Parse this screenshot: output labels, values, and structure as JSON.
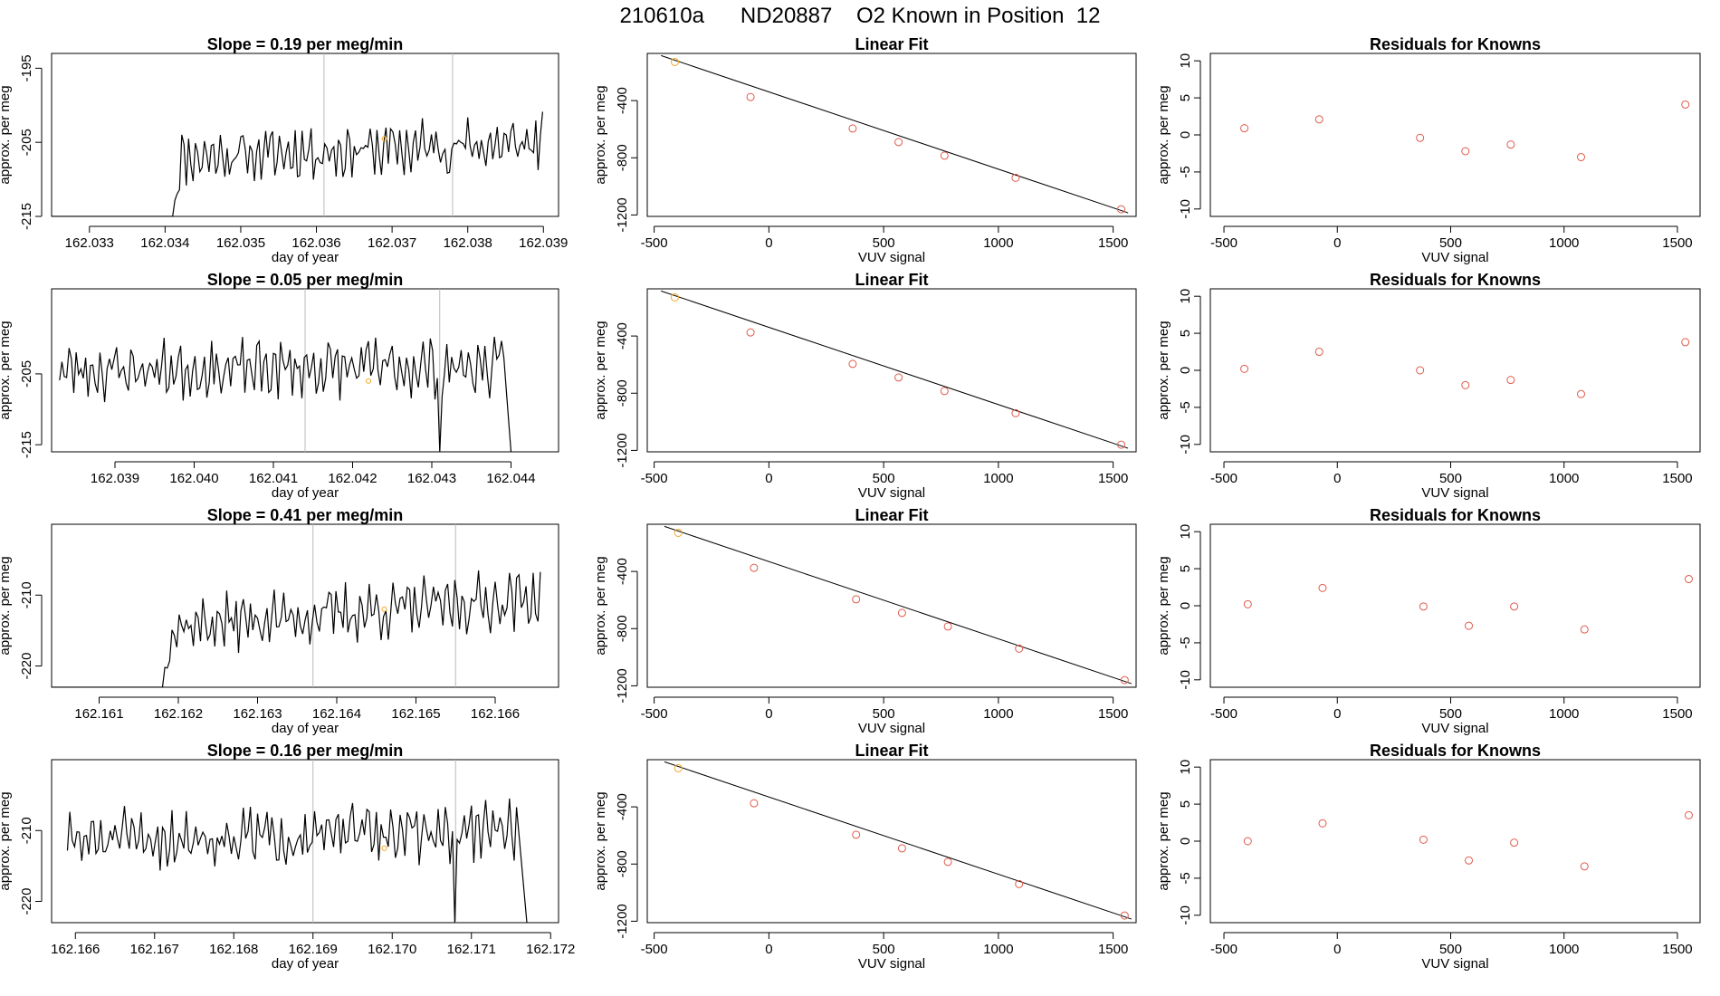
{
  "page_title": "210610a      ND20887    O2 Known in Position  12",
  "colors": {
    "trace": "#000000",
    "fit_line": "#000000",
    "known_point": "#e05a4a",
    "current_point": "#f5a623",
    "vline": "#bbbbbb"
  },
  "chart_data": [
    {
      "type": "line",
      "row": 0,
      "title": "Slope =  0.19  per meg/min",
      "xlabel": "day of year",
      "ylabel": "approx. per meg",
      "xlim": [
        162.0325,
        162.0392
      ],
      "ylim": [
        -215,
        -193
      ],
      "xticks": [
        162.033,
        162.034,
        162.035,
        162.036,
        162.037,
        162.038,
        162.039
      ],
      "xtick_labels": [
        "162.033",
        "162.034",
        "162.035",
        "162.036",
        "162.037",
        "162.038",
        "162.039"
      ],
      "yticks": [
        -215,
        -205,
        -195
      ],
      "ytick_labels": [
        "-215",
        "-205",
        "-195"
      ],
      "vlines": [
        162.0361,
        162.0378
      ],
      "highlight": {
        "x": 162.0369,
        "y": -204.5
      },
      "trace": {
        "start": 162.0341,
        "end": 162.039,
        "step": 3e-05,
        "base": -207,
        "trend": 0.19,
        "amp": 3.2,
        "seed": 11,
        "pre_x0": 162.0325,
        "pre_y": -215,
        "dips": []
      }
    },
    {
      "type": "line",
      "row": 1,
      "title": "Slope =  0.05  per meg/min",
      "xlabel": "day of year",
      "ylabel": "approx. per meg",
      "xlim": [
        162.0382,
        162.0446
      ],
      "ylim": [
        -216,
        -193
      ],
      "xticks": [
        162.039,
        162.04,
        162.041,
        162.042,
        162.043,
        162.044
      ],
      "xtick_labels": [
        "162.039",
        "162.040",
        "162.041",
        "162.042",
        "162.043",
        "162.044"
      ],
      "yticks": [
        -215,
        -205
      ],
      "ytick_labels": [
        "-215",
        "-205"
      ],
      "vlines": [
        162.0414,
        162.0431
      ],
      "highlight": {
        "x": 162.0422,
        "y": -206
      },
      "trace": {
        "start": 162.0383,
        "end": 162.04395,
        "step": 3e-05,
        "base": -204.5,
        "trend": 0.05,
        "amp": 3.4,
        "seed": 23,
        "dips": [
          {
            "x": 162.0431,
            "y": -216
          }
        ],
        "tail": {
          "x": 162.044,
          "y": -216
        }
      }
    },
    {
      "type": "line",
      "row": 2,
      "title": "Slope =  0.41  per meg/min",
      "xlabel": "day of year",
      "ylabel": "approx. per meg",
      "xlim": [
        162.1604,
        162.1668
      ],
      "ylim": [
        -223,
        -200
      ],
      "xticks": [
        162.161,
        162.162,
        162.163,
        162.164,
        162.165,
        162.166
      ],
      "xtick_labels": [
        "162.161",
        "162.162",
        "162.163",
        "162.164",
        "162.165",
        "162.166"
      ],
      "yticks": [
        -220,
        -210
      ],
      "ytick_labels": [
        "-220",
        "-210"
      ],
      "vlines": [
        162.1637,
        162.1655
      ],
      "highlight": {
        "x": 162.1646,
        "y": -212
      },
      "trace": {
        "start": 162.1618,
        "end": 162.1666,
        "step": 3e-05,
        "base": -214.5,
        "trend": 0.41,
        "amp": 3.4,
        "seed": 37,
        "pre_x0": 162.1604,
        "pre_y": -223,
        "dips": []
      }
    },
    {
      "type": "line",
      "row": 3,
      "title": "Slope =  0.16  per meg/min",
      "xlabel": "day of year",
      "ylabel": "approx. per meg",
      "xlim": [
        162.1657,
        162.1721
      ],
      "ylim": [
        -223,
        -200
      ],
      "xticks": [
        162.166,
        162.167,
        162.168,
        162.169,
        162.17,
        162.171,
        162.172
      ],
      "xtick_labels": [
        "162.166",
        "162.167",
        "162.168",
        "162.169",
        "162.170",
        "162.171",
        "162.172"
      ],
      "yticks": [
        -220,
        -210
      ],
      "ytick_labels": [
        "-220",
        "-210"
      ],
      "vlines": [
        162.169,
        162.1708
      ],
      "highlight": {
        "x": 162.1699,
        "y": -212.5
      },
      "trace": {
        "start": 162.1659,
        "end": 162.1716,
        "step": 3e-05,
        "base": -211.5,
        "trend": 0.16,
        "amp": 3.4,
        "seed": 51,
        "dips": [
          {
            "x": 162.1708,
            "y": -223
          }
        ],
        "tail": {
          "x": 162.1717,
          "y": -223
        }
      }
    },
    {
      "type": "scatter",
      "row": 0,
      "title": "Linear Fit",
      "xlabel": "VUV signal",
      "ylabel": "approx. per meg",
      "xlim": [
        -530,
        1600
      ],
      "ylim": [
        -1210,
        -70
      ],
      "xticks": [
        -500,
        0,
        500,
        1000,
        1500
      ],
      "xtick_labels": [
        "-500",
        "0",
        "500",
        "1000",
        "1500"
      ],
      "yticks": [
        -1200,
        -800,
        -400
      ],
      "ytick_labels": [
        "-1200",
        "-800",
        "-400"
      ],
      "x": [
        -410,
        -80,
        365,
        565,
        765,
        1075,
        1535
      ],
      "y": [
        -130,
        -375,
        -595,
        -690,
        -785,
        -940,
        -1160
      ],
      "highlight_index": 0,
      "fit": {
        "x": [
          -470,
          1565
        ],
        "y": [
          -85,
          -1185
        ]
      }
    },
    {
      "type": "scatter",
      "row": 1,
      "title": "Linear Fit",
      "xlabel": "VUV signal",
      "ylabel": "approx. per meg",
      "xlim": [
        -530,
        1600
      ],
      "ylim": [
        -1210,
        -70
      ],
      "xticks": [
        -500,
        0,
        500,
        1000,
        1500
      ],
      "xtick_labels": [
        "-500",
        "0",
        "500",
        "1000",
        "1500"
      ],
      "yticks": [
        -1200,
        -800,
        -400
      ],
      "ytick_labels": [
        "-1200",
        "-800",
        "-400"
      ],
      "x": [
        -410,
        -80,
        365,
        565,
        765,
        1075,
        1535
      ],
      "y": [
        -130,
        -375,
        -595,
        -690,
        -785,
        -940,
        -1160
      ],
      "highlight_index": 0,
      "fit": {
        "x": [
          -470,
          1565
        ],
        "y": [
          -85,
          -1185
        ]
      }
    },
    {
      "type": "scatter",
      "row": 2,
      "title": "Linear Fit",
      "xlabel": "VUV signal",
      "ylabel": "approx. per meg",
      "xlim": [
        -530,
        1600
      ],
      "ylim": [
        -1210,
        -70
      ],
      "xticks": [
        -500,
        0,
        500,
        1000,
        1500
      ],
      "xtick_labels": [
        "-500",
        "0",
        "500",
        "1000",
        "1500"
      ],
      "yticks": [
        -1200,
        -800,
        -400
      ],
      "ytick_labels": [
        "-1200",
        "-800",
        "-400"
      ],
      "x": [
        -395,
        -65,
        380,
        580,
        780,
        1090,
        1550
      ],
      "y": [
        -130,
        -375,
        -595,
        -690,
        -785,
        -940,
        -1160
      ],
      "highlight_index": 0,
      "fit": {
        "x": [
          -455,
          1580
        ],
        "y": [
          -85,
          -1185
        ]
      }
    },
    {
      "type": "scatter",
      "row": 3,
      "title": "Linear Fit",
      "xlabel": "VUV signal",
      "ylabel": "approx. per meg",
      "xlim": [
        -530,
        1600
      ],
      "ylim": [
        -1210,
        -70
      ],
      "xticks": [
        -500,
        0,
        500,
        1000,
        1500
      ],
      "xtick_labels": [
        "-500",
        "0",
        "500",
        "1000",
        "1500"
      ],
      "yticks": [
        -1200,
        -800,
        -400
      ],
      "ytick_labels": [
        "-1200",
        "-800",
        "-400"
      ],
      "x": [
        -395,
        -65,
        380,
        580,
        780,
        1090,
        1550
      ],
      "y": [
        -130,
        -375,
        -595,
        -690,
        -785,
        -940,
        -1160
      ],
      "highlight_index": 0,
      "fit": {
        "x": [
          -455,
          1580
        ],
        "y": [
          -85,
          -1185
        ]
      }
    },
    {
      "type": "scatter",
      "row": 0,
      "title": "Residuals for Knowns",
      "xlabel": "VUV signal",
      "ylabel": "approx. per meg",
      "xlim": [
        -560,
        1600
      ],
      "ylim": [
        -11,
        11
      ],
      "xticks": [
        -500,
        0,
        500,
        1000,
        1500
      ],
      "xtick_labels": [
        "-500",
        "0",
        "500",
        "1000",
        "1500"
      ],
      "yticks": [
        -10,
        -5,
        0,
        5,
        10
      ],
      "ytick_labels": [
        "-10",
        "-5",
        "0",
        "5",
        "10"
      ],
      "x": [
        -410,
        -80,
        365,
        565,
        765,
        1075,
        1535
      ],
      "y": [
        0.9,
        2.1,
        -0.4,
        -2.2,
        -1.3,
        -3.0,
        4.1
      ]
    },
    {
      "type": "scatter",
      "row": 1,
      "title": "Residuals for Knowns",
      "xlabel": "VUV signal",
      "ylabel": "approx. per meg",
      "xlim": [
        -560,
        1600
      ],
      "ylim": [
        -11,
        11
      ],
      "xticks": [
        -500,
        0,
        500,
        1000,
        1500
      ],
      "xtick_labels": [
        "-500",
        "0",
        "500",
        "1000",
        "1500"
      ],
      "yticks": [
        -10,
        -5,
        0,
        5,
        10
      ],
      "ytick_labels": [
        "-10",
        "-5",
        "0",
        "5",
        "10"
      ],
      "x": [
        -410,
        -80,
        365,
        565,
        765,
        1075,
        1535
      ],
      "y": [
        0.2,
        2.5,
        0.0,
        -2.0,
        -1.3,
        -3.2,
        3.8
      ]
    },
    {
      "type": "scatter",
      "row": 2,
      "title": "Residuals for Knowns",
      "xlabel": "VUV signal",
      "ylabel": "approx. per meg",
      "xlim": [
        -560,
        1600
      ],
      "ylim": [
        -11,
        11
      ],
      "xticks": [
        -500,
        0,
        500,
        1000,
        1500
      ],
      "xtick_labels": [
        "-500",
        "0",
        "500",
        "1000",
        "1500"
      ],
      "yticks": [
        -10,
        -5,
        0,
        5,
        10
      ],
      "ytick_labels": [
        "-10",
        "-5",
        "0",
        "5",
        "10"
      ],
      "x": [
        -395,
        -65,
        380,
        580,
        780,
        1090,
        1550
      ],
      "y": [
        0.2,
        2.4,
        -0.1,
        -2.7,
        -0.1,
        -3.2,
        3.6
      ]
    },
    {
      "type": "scatter",
      "row": 3,
      "title": "Residuals for Knowns",
      "xlabel": "VUV signal",
      "ylabel": "approx. per meg",
      "xlim": [
        -560,
        1600
      ],
      "ylim": [
        -11,
        11
      ],
      "xticks": [
        -500,
        0,
        500,
        1000,
        1500
      ],
      "xtick_labels": [
        "-500",
        "0",
        "500",
        "1000",
        "1500"
      ],
      "yticks": [
        -10,
        -5,
        0,
        5,
        10
      ],
      "ytick_labels": [
        "-10",
        "-5",
        "0",
        "5",
        "10"
      ],
      "x": [
        -395,
        -65,
        380,
        580,
        780,
        1090,
        1550
      ],
      "y": [
        0.0,
        2.4,
        0.2,
        -2.6,
        -0.2,
        -3.4,
        3.5
      ]
    }
  ]
}
